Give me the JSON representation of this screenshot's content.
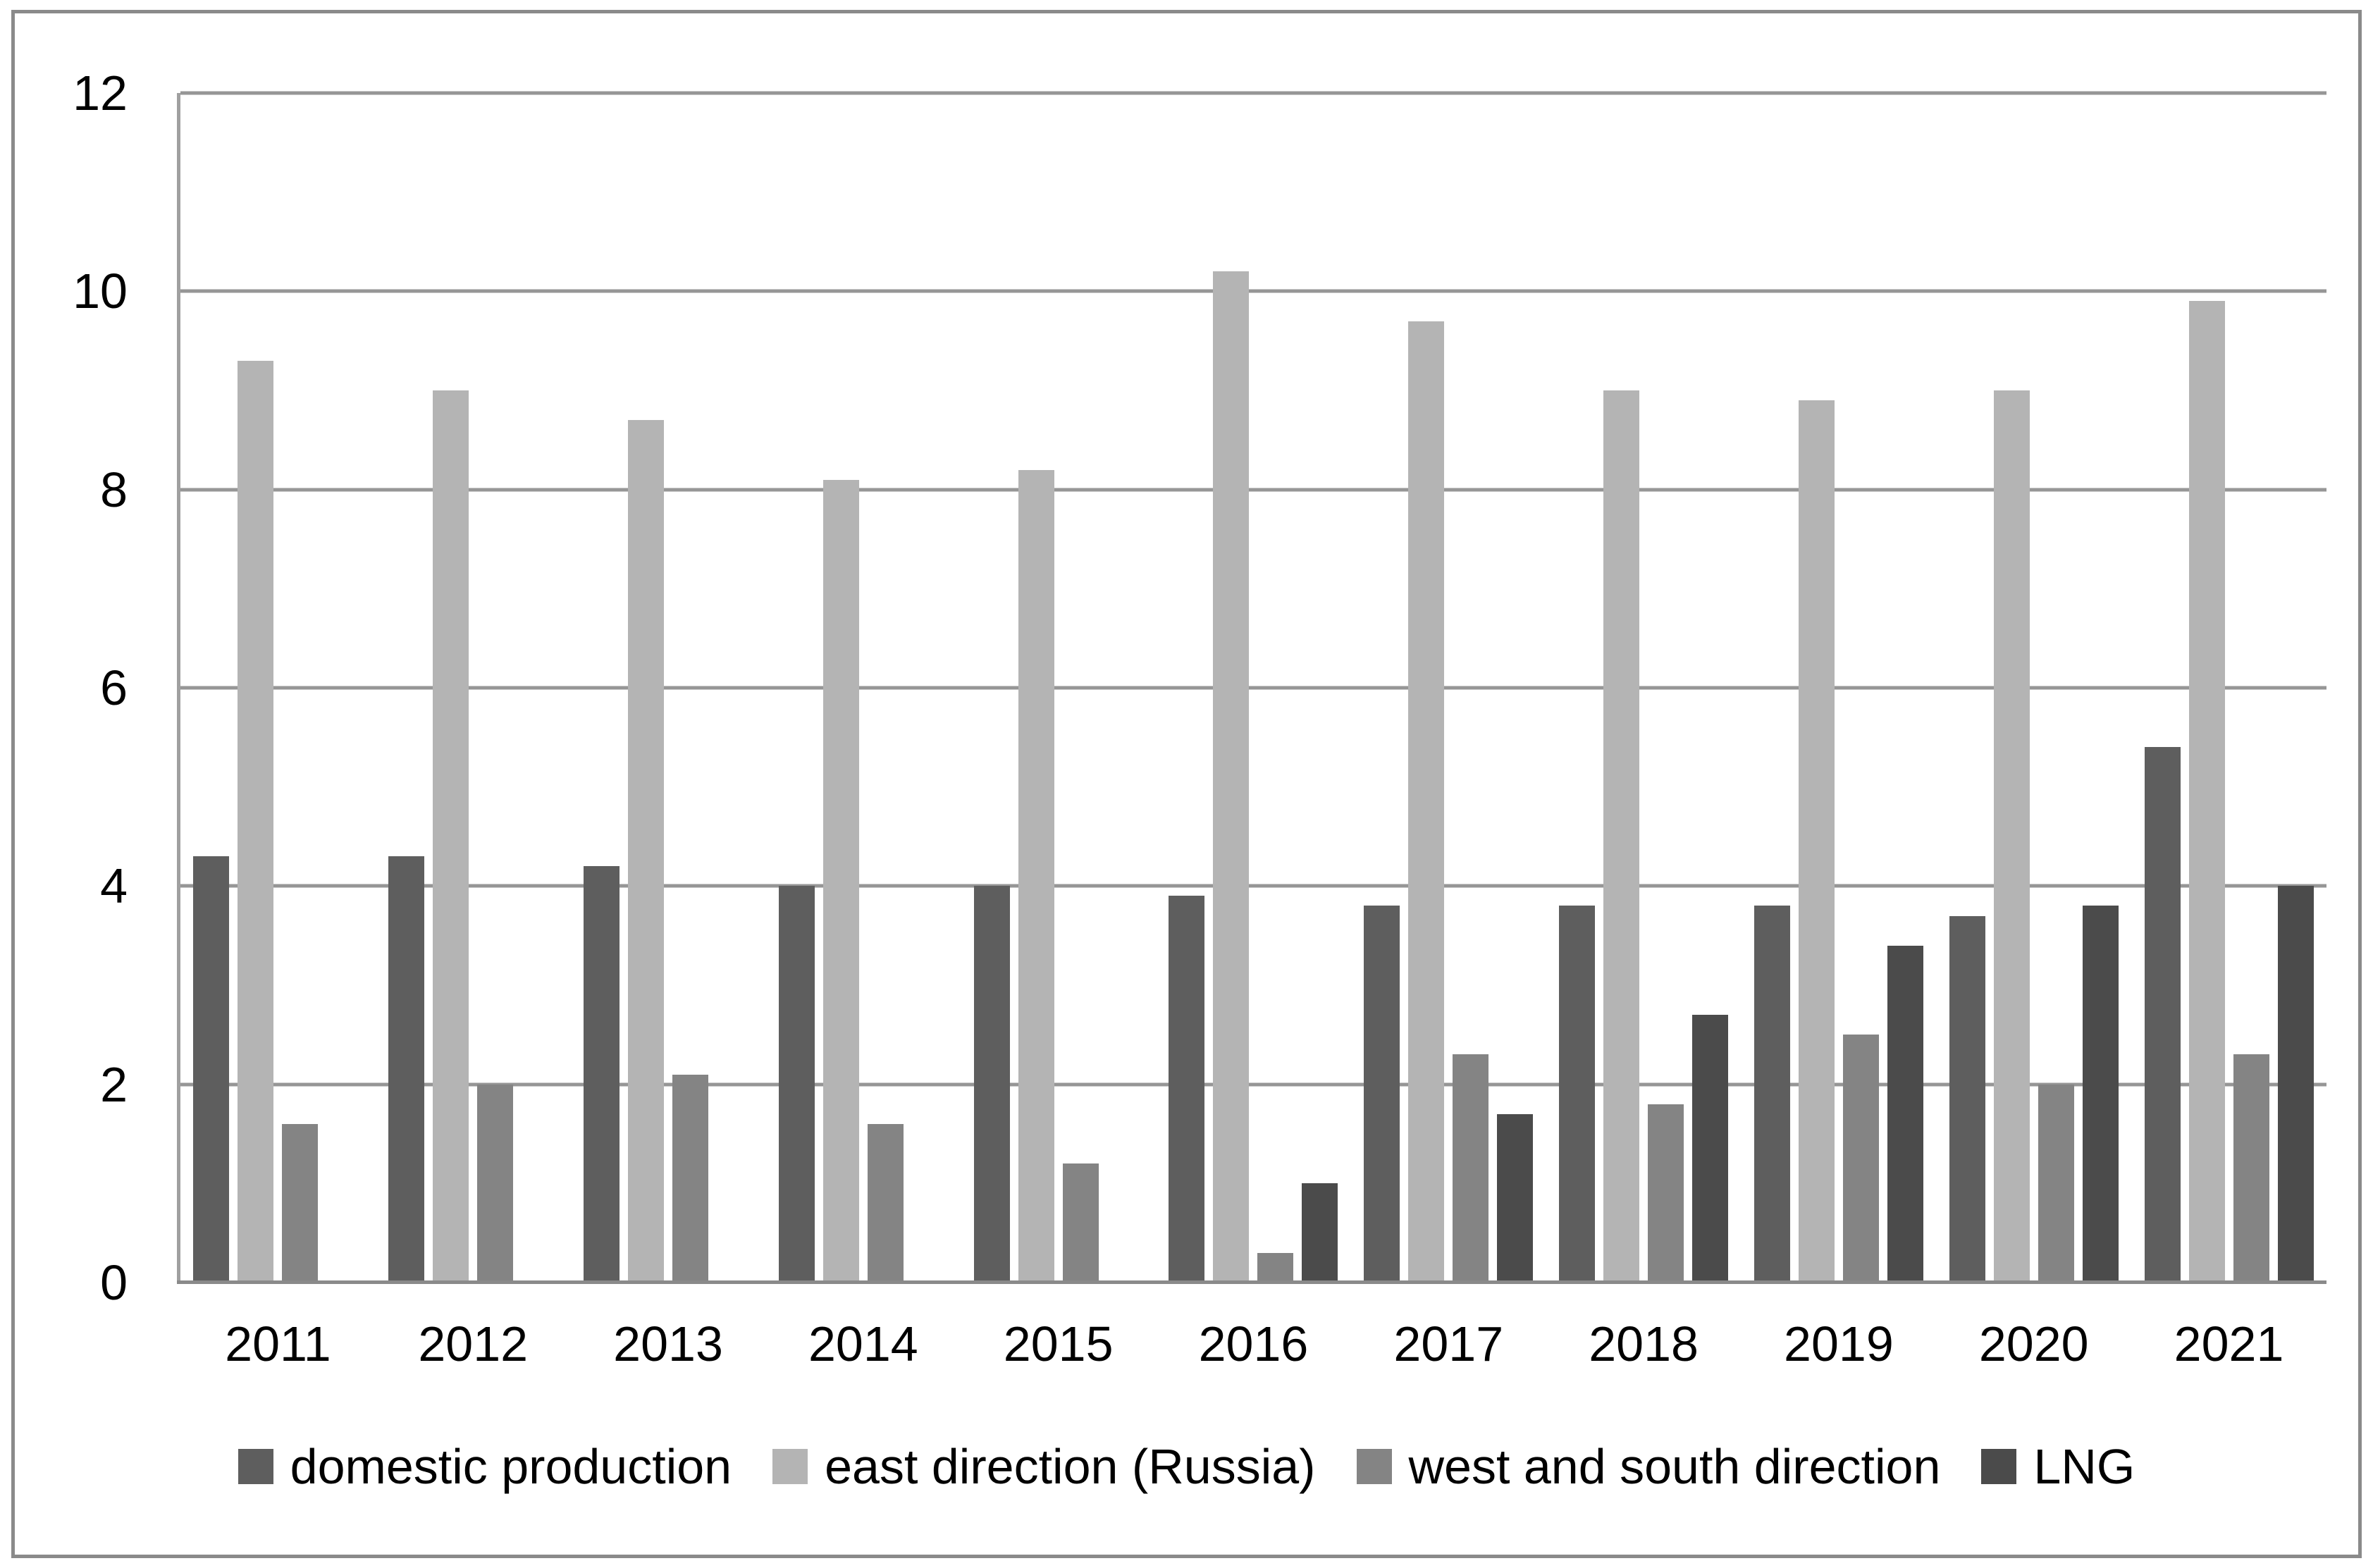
{
  "chart_data": {
    "type": "bar",
    "title": "",
    "xlabel": "",
    "ylabel": "",
    "categories": [
      "2011",
      "2012",
      "2013",
      "2014",
      "2015",
      "2016",
      "2017",
      "2018",
      "2019",
      "2020",
      "2021"
    ],
    "series": [
      {
        "name": "domestic production",
        "color": "#5e5e5e",
        "values": [
          4.3,
          4.3,
          4.2,
          4.0,
          4.0,
          3.9,
          3.8,
          3.8,
          3.8,
          3.7,
          5.4
        ]
      },
      {
        "name": "east direction (Russia)",
        "color": "#b4b4b4",
        "values": [
          9.3,
          9.0,
          8.7,
          8.1,
          8.2,
          10.2,
          9.7,
          9.0,
          8.9,
          9.0,
          9.9
        ]
      },
      {
        "name": "west and south direction",
        "color": "#848484",
        "values": [
          1.6,
          2.0,
          2.1,
          1.6,
          1.2,
          0.3,
          2.3,
          1.8,
          2.5,
          2.0,
          2.3
        ]
      },
      {
        "name": "LNG",
        "color": "#4b4b4b",
        "values": [
          null,
          null,
          null,
          null,
          null,
          1.0,
          1.7,
          2.7,
          3.4,
          3.8,
          4.0
        ]
      }
    ],
    "ylim": [
      0,
      12
    ],
    "yticks": [
      0,
      2,
      4,
      6,
      8,
      10,
      12
    ],
    "grid": true,
    "grid_color": "#969696",
    "legend_position": "bottom"
  }
}
